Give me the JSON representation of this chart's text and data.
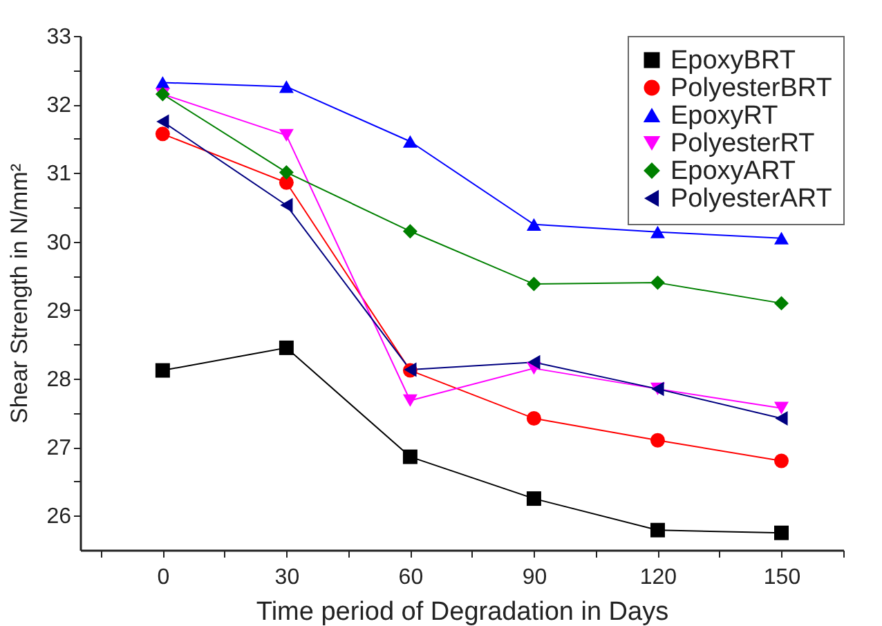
{
  "chart_data": {
    "type": "line",
    "xlabel": "Time period of Degradation in Days",
    "ylabel": "Shear Strength in N/mm²",
    "x": [
      0,
      30,
      60,
      90,
      120,
      150
    ],
    "series": [
      {
        "name": "EpoxyBRT",
        "color": "#000000",
        "marker": "square",
        "values": [
          28.12,
          28.45,
          26.86,
          26.25,
          25.79,
          25.75
        ]
      },
      {
        "name": "PolyesterBRT",
        "color": "#ff0000",
        "marker": "circle",
        "values": [
          31.57,
          30.86,
          28.12,
          27.42,
          27.1,
          26.8
        ]
      },
      {
        "name": "EpoxyRT",
        "color": "#0000ff",
        "marker": "triangle-up",
        "values": [
          32.32,
          32.26,
          31.46,
          30.25,
          30.14,
          30.05
        ]
      },
      {
        "name": "PolyesterRT",
        "color": "#ff00ff",
        "marker": "triangle-down",
        "values": [
          32.15,
          31.55,
          27.68,
          28.15,
          27.85,
          27.57
        ]
      },
      {
        "name": "EpoxyART",
        "color": "#008000",
        "marker": "diamond",
        "values": [
          32.15,
          31.01,
          30.15,
          29.38,
          29.4,
          29.1
        ]
      },
      {
        "name": "PolyesterART",
        "color": "#000080",
        "marker": "triangle-left",
        "values": [
          31.75,
          30.53,
          28.13,
          28.24,
          27.85,
          27.42
        ]
      }
    ],
    "xlim": [
      -20,
      165
    ],
    "xticks": [
      {
        "value": -15,
        "label": null
      },
      0,
      {
        "value": 15,
        "label": null
      },
      30,
      {
        "value": 45,
        "label": null
      },
      60,
      {
        "value": 75,
        "label": null
      },
      90,
      {
        "value": 105,
        "label": null
      },
      120,
      {
        "value": 135,
        "label": null
      },
      150,
      {
        "value": 165,
        "label": null
      }
    ],
    "ylim": [
      25.5,
      33
    ],
    "yticks": [
      26,
      {
        "value": 26.5,
        "label": null
      },
      27,
      {
        "value": 27.5,
        "label": null
      },
      28,
      {
        "value": 28.5,
        "label": null
      },
      29,
      {
        "value": 29.5,
        "label": null
      },
      30,
      {
        "value": 30.5,
        "label": null
      },
      31,
      {
        "value": 31.5,
        "label": null
      },
      32,
      {
        "value": 32.5,
        "label": null
      },
      33
    ],
    "grid": false,
    "legend": "top right"
  }
}
